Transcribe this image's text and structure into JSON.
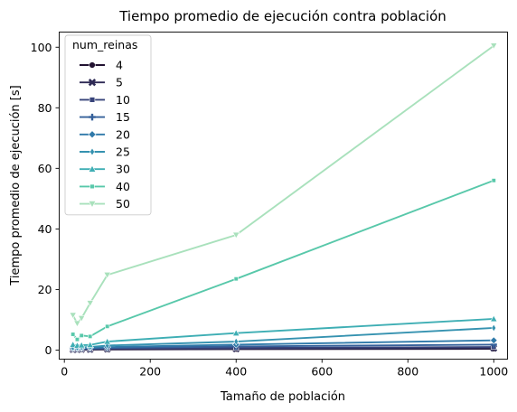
{
  "chart_data": {
    "type": "line",
    "title": "Tiempo promedio de ejecución contra población",
    "xlabel": "Tamaño de población",
    "ylabel": "Tiempo promedio de ejecución [s]",
    "xlim": [
      -12,
      1032
    ],
    "ylim": [
      -3,
      105
    ],
    "xticks": [
      0,
      200,
      400,
      600,
      800,
      1000
    ],
    "yticks": [
      0,
      20,
      40,
      60,
      80,
      100
    ],
    "x": [
      20,
      30,
      40,
      60,
      100,
      400,
      1000
    ],
    "legend": {
      "title": "num_reinas",
      "placement": "upper-left"
    },
    "grid": false,
    "series": [
      {
        "name": "4",
        "color": "#221331",
        "marker": "circle",
        "values": [
          0.1,
          0.1,
          0.1,
          0.15,
          0.2,
          0.3,
          0.4
        ]
      },
      {
        "name": "5",
        "color": "#2e2a55",
        "marker": "x",
        "values": [
          0.15,
          0.15,
          0.2,
          0.2,
          0.3,
          0.4,
          0.6
        ]
      },
      {
        "name": "10",
        "color": "#37437a",
        "marker": "square",
        "values": [
          0.3,
          0.3,
          0.3,
          0.4,
          0.5,
          0.7,
          1.0
        ]
      },
      {
        "name": "15",
        "color": "#35609a",
        "marker": "plus",
        "values": [
          0.4,
          0.4,
          0.5,
          0.5,
          0.7,
          1.2,
          1.8
        ]
      },
      {
        "name": "20",
        "color": "#2f79a9",
        "marker": "diamond",
        "values": [
          0.6,
          0.6,
          0.7,
          0.8,
          1.0,
          1.8,
          3.2
        ]
      },
      {
        "name": "25",
        "color": "#3592b0",
        "marker": "thin_diamond",
        "values": [
          0.8,
          0.8,
          0.9,
          1.0,
          1.5,
          2.8,
          7.3
        ]
      },
      {
        "name": "30",
        "color": "#3eaeb4",
        "marker": "triangle_up",
        "values": [
          1.8,
          1.5,
          1.6,
          1.7,
          2.8,
          5.6,
          10.3
        ]
      },
      {
        "name": "40",
        "color": "#58c8aa",
        "marker": "square_small",
        "values": [
          5.2,
          3.5,
          4.8,
          4.5,
          7.8,
          23.5,
          56.0
        ]
      },
      {
        "name": "50",
        "color": "#a9e1bc",
        "marker": "triangle_down",
        "values": [
          11.5,
          8.8,
          10.5,
          15.5,
          24.8,
          38.0,
          100.5
        ]
      }
    ]
  }
}
